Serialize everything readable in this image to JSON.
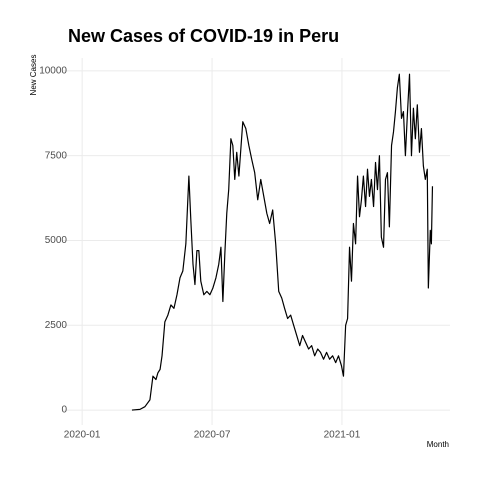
{
  "chart_data": {
    "type": "line",
    "title": "New Cases of COVID-19 in Peru",
    "x_label": "Month",
    "y_label": "New Cases",
    "color": "#000000",
    "grid": true,
    "xlim": [
      -0.93,
      16.99
    ],
    "xticks": [
      {
        "value": 0,
        "label": "2020-01"
      },
      {
        "value": 6,
        "label": "2020-07"
      },
      {
        "value": 12,
        "label": "2021-01"
      }
    ],
    "ylim": [
      -440,
      10380
    ],
    "yticks": [
      0,
      2500,
      5000,
      7500,
      10000
    ],
    "x": [
      2.3,
      2.67,
      2.9,
      3.13,
      3.27,
      3.41,
      3.5,
      3.6,
      3.69,
      3.82,
      3.96,
      4.1,
      4.24,
      4.38,
      4.52,
      4.65,
      4.79,
      4.93,
      5.02,
      5.12,
      5.21,
      5.3,
      5.39,
      5.48,
      5.62,
      5.76,
      5.9,
      6.04,
      6.18,
      6.31,
      6.41,
      6.5,
      6.59,
      6.68,
      6.77,
      6.87,
      6.96,
      7.05,
      7.14,
      7.24,
      7.42,
      7.56,
      7.7,
      7.83,
      7.97,
      8.11,
      8.25,
      8.39,
      8.53,
      8.66,
      8.8,
      8.94,
      9.08,
      9.22,
      9.35,
      9.49,
      9.63,
      9.77,
      9.91,
      10.05,
      10.18,
      10.32,
      10.46,
      10.6,
      10.74,
      10.88,
      11.01,
      11.15,
      11.29,
      11.43,
      11.57,
      11.71,
      11.84,
      11.98,
      12.07,
      12.17,
      12.26,
      12.35,
      12.44,
      12.53,
      12.63,
      12.72,
      12.81,
      12.9,
      12.99,
      13.09,
      13.18,
      13.27,
      13.36,
      13.46,
      13.55,
      13.64,
      13.73,
      13.82,
      13.92,
      14.01,
      14.1,
      14.19,
      14.29,
      14.38,
      14.47,
      14.56,
      14.65,
      14.75,
      14.84,
      14.93,
      15.02,
      15.12,
      15.21,
      15.3,
      15.39,
      15.48,
      15.58,
      15.67,
      15.76,
      15.85,
      15.94,
      15.99,
      16.08,
      16.13,
      16.18
    ],
    "values": [
      0,
      20,
      100,
      300,
      1000,
      900,
      1100,
      1200,
      1600,
      2600,
      2800,
      3100,
      3000,
      3400,
      3900,
      4100,
      4900,
      6900,
      5600,
      4300,
      3700,
      4700,
      4700,
      3800,
      3400,
      3500,
      3400,
      3600,
      3900,
      4300,
      4800,
      3200,
      4600,
      5800,
      6500,
      8000,
      7800,
      6800,
      7600,
      6900,
      8500,
      8300,
      7800,
      7400,
      7000,
      6200,
      6800,
      6300,
      5800,
      5500,
      5900,
      4900,
      3500,
      3300,
      3000,
      2700,
      2800,
      2500,
      2200,
      1900,
      2200,
      2000,
      1800,
      1900,
      1600,
      1800,
      1700,
      1500,
      1700,
      1500,
      1600,
      1400,
      1600,
      1300,
      1000,
      2500,
      2700,
      4800,
      3800,
      5500,
      4900,
      6900,
      5700,
      6200,
      6900,
      6000,
      7100,
      6300,
      6800,
      6000,
      7300,
      6500,
      7500,
      5100,
      4800,
      6800,
      7000,
      5400,
      7800,
      8200,
      8800,
      9500,
      9900,
      8600,
      8800,
      7500,
      8700,
      9900,
      7500,
      8900,
      8000,
      9000,
      7600,
      8300,
      7200,
      6800,
      7100,
      3600,
      5300,
      4900,
      6600
    ]
  }
}
